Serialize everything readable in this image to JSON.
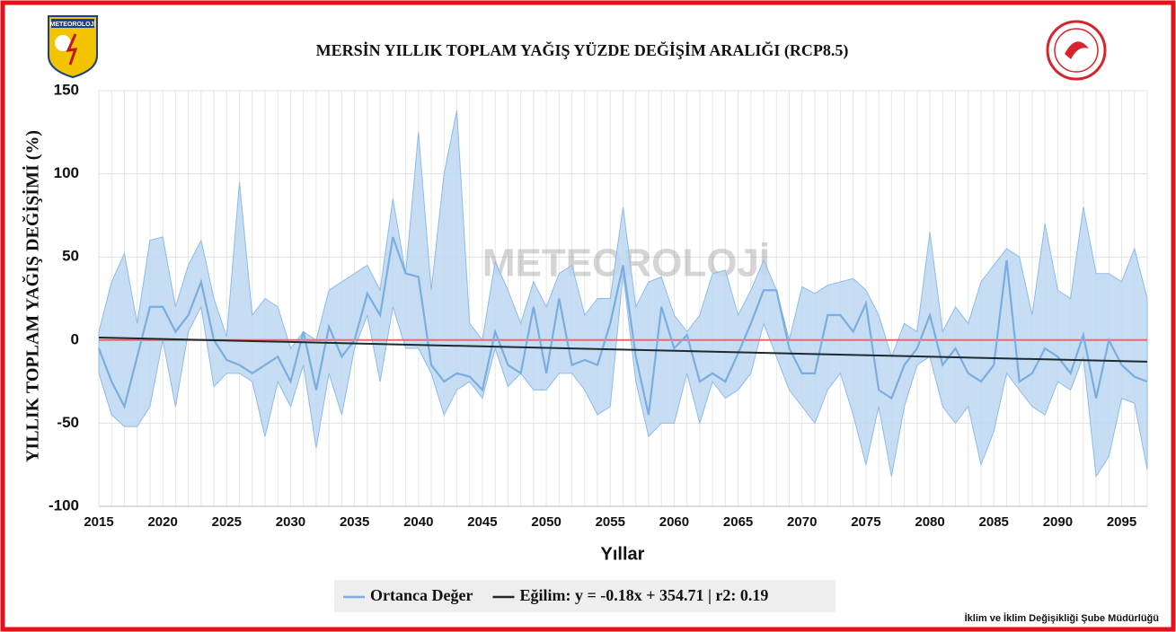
{
  "chart_data": {
    "type": "line",
    "title": "MERSİN YILLIK TOPLAM YAĞIŞ YÜZDE DEĞİŞİM ARALIĞI (RCP8.5)",
    "ylabel": "YILLIK TOPLAM YAĞIŞ DEĞİŞİMİ (%)",
    "xlabel": "Yıllar",
    "logo_text": "METEOROLOJİ",
    "watermark": "METEOROLOJİ",
    "footer": "İklim ve İklim Değişikliği Şube Müdürlüğü",
    "x": [
      2015,
      2016,
      2017,
      2018,
      2019,
      2020,
      2021,
      2022,
      2023,
      2024,
      2025,
      2026,
      2027,
      2028,
      2029,
      2030,
      2031,
      2032,
      2033,
      2034,
      2035,
      2036,
      2037,
      2038,
      2039,
      2040,
      2041,
      2042,
      2043,
      2044,
      2045,
      2046,
      2047,
      2048,
      2049,
      2050,
      2051,
      2052,
      2053,
      2054,
      2055,
      2056,
      2057,
      2058,
      2059,
      2060,
      2061,
      2062,
      2063,
      2064,
      2065,
      2066,
      2067,
      2068,
      2069,
      2070,
      2071,
      2072,
      2073,
      2074,
      2075,
      2076,
      2077,
      2078,
      2079,
      2080,
      2081,
      2082,
      2083,
      2084,
      2085,
      2086,
      2087,
      2088,
      2089,
      2090,
      2091,
      2092,
      2093,
      2094,
      2095,
      2096,
      2097
    ],
    "band": {
      "color": "#bcd7f2",
      "edge": "#8fbbe6",
      "upper": [
        5,
        35,
        52,
        10,
        60,
        62,
        20,
        45,
        60,
        25,
        2,
        95,
        15,
        25,
        20,
        -5,
        5,
        0,
        30,
        35,
        40,
        45,
        30,
        85,
        40,
        125,
        30,
        100,
        138,
        10,
        0,
        47,
        30,
        10,
        35,
        20,
        40,
        45,
        15,
        25,
        25,
        80,
        20,
        35,
        38,
        15,
        5,
        15,
        40,
        42,
        15,
        30,
        48,
        30,
        0,
        32,
        28,
        33,
        35,
        37,
        30,
        15,
        -10,
        10,
        5,
        65,
        5,
        20,
        10,
        35,
        45,
        55,
        50,
        15,
        70,
        30,
        25,
        80,
        40,
        40,
        35,
        55,
        25
      ],
      "lower": [
        -20,
        -45,
        -52,
        -52,
        -40,
        0,
        -40,
        5,
        20,
        -28,
        -20,
        -20,
        -25,
        -58,
        -25,
        -40,
        -15,
        -65,
        -20,
        -45,
        -5,
        15,
        -25,
        20,
        -5,
        -5,
        -20,
        -45,
        -30,
        -25,
        -35,
        -5,
        -28,
        -20,
        -30,
        -30,
        -20,
        -20,
        -30,
        -45,
        -40,
        40,
        -25,
        -58,
        -50,
        -50,
        -20,
        -50,
        -25,
        -35,
        -30,
        -20,
        10,
        -10,
        -30,
        -40,
        -50,
        -30,
        -20,
        -45,
        -75,
        -40,
        -82,
        -40,
        -15,
        -10,
        -40,
        -50,
        -40,
        -75,
        -55,
        -20,
        -30,
        -40,
        -45,
        -25,
        -30,
        -10,
        -82,
        -70,
        -35,
        -38,
        -78
      ]
    },
    "series": [
      {
        "name": "Ortanca Değer",
        "color": "#7aaee0",
        "values": [
          -5,
          -25,
          -40,
          -10,
          20,
          20,
          5,
          15,
          35,
          0,
          -12,
          -15,
          -20,
          -15,
          -10,
          -25,
          5,
          -30,
          8,
          -10,
          0,
          28,
          15,
          62,
          40,
          38,
          -15,
          -25,
          -20,
          -22,
          -30,
          5,
          -15,
          -20,
          20,
          -20,
          25,
          -15,
          -12,
          -15,
          10,
          45,
          -10,
          -45,
          20,
          -5,
          3,
          -25,
          -20,
          -25,
          -8,
          10,
          30,
          30,
          -5,
          -20,
          -20,
          15,
          15,
          5,
          22,
          -30,
          -35,
          -15,
          -5,
          15,
          -15,
          -5,
          -20,
          -25,
          -15,
          48,
          -25,
          -20,
          -5,
          -10,
          -20,
          3,
          -35,
          0,
          -15,
          -22,
          -25
        ]
      },
      {
        "name": "Eğilim: y = -0.18x + 354.71 | r2: 0.19",
        "color": "#1e2a30",
        "x": [
          2015,
          2097
        ],
        "values": [
          1.5,
          -13
        ]
      }
    ],
    "reference_line": {
      "value": 0,
      "color": "#e86a6a"
    },
    "xlim": [
      2015,
      2097
    ],
    "xticks": [
      2015,
      2020,
      2025,
      2030,
      2035,
      2040,
      2045,
      2050,
      2055,
      2060,
      2065,
      2070,
      2075,
      2080,
      2085,
      2090,
      2095
    ],
    "ylim": [
      -100,
      150
    ],
    "yticks": [
      -100,
      -50,
      0,
      50,
      100,
      150
    ],
    "grid": true
  }
}
